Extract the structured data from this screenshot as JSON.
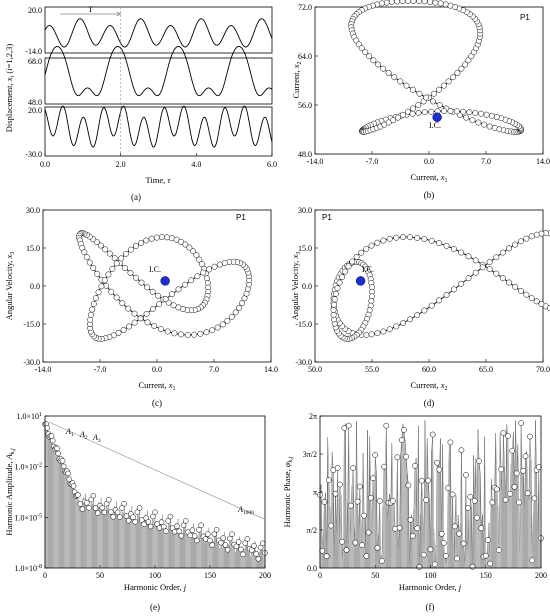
{
  "chart_data": [
    {
      "id": "a",
      "type": "line",
      "caption": "(a)",
      "xlabel": "Time, τ",
      "ylabel": "Displacement, x_i (i=1,2,3)",
      "xlim": [
        0.0,
        6.0
      ],
      "xticks": [
        "0.0",
        "2.0",
        "4.0",
        "6.0"
      ],
      "period_label": "T",
      "panels": [
        {
          "ylim": [
            -14.0,
            20.0
          ],
          "ticks": [
            "20.0",
            "-14.0"
          ]
        },
        {
          "ylim": [
            48.0,
            68.0
          ],
          "ticks": [
            "68.0",
            "48.0"
          ]
        },
        {
          "ylim": [
            -30.0,
            20.0
          ],
          "ticks": [
            "20.0",
            "-30.0"
          ]
        }
      ]
    },
    {
      "id": "b",
      "type": "scatter",
      "caption": "(b)",
      "tag": "P1",
      "xlabel": "Current, x_1",
      "ylabel": "Current, x_2",
      "xlim": [
        -14.0,
        14.0
      ],
      "ylim": [
        48.0,
        72.0
      ],
      "xticks": [
        "-14.0",
        "-7.0",
        "0.0",
        "7.0",
        "14.0"
      ],
      "yticks": [
        "48.0",
        "56.0",
        "64.0",
        "72.0"
      ],
      "ic_label": "I.C.",
      "ic": [
        1.0,
        54.0
      ]
    },
    {
      "id": "c",
      "type": "scatter",
      "caption": "(c)",
      "tag": "P1",
      "xlabel": "Current, x_1",
      "ylabel": "Angular Velocity, x_3",
      "xlim": [
        -14.0,
        14.0
      ],
      "ylim": [
        -30.0,
        30.0
      ],
      "xticks": [
        "-14.0",
        "-7.0",
        "0.0",
        "7.0",
        "14.0"
      ],
      "yticks": [
        "-30.0",
        "-15.0",
        "0.0",
        "15.0",
        "30.0"
      ],
      "ic_label": "I.C.",
      "ic": [
        1.0,
        2.0
      ]
    },
    {
      "id": "d",
      "type": "scatter",
      "caption": "(d)",
      "tag": "P1",
      "xlabel": "Current, x_2",
      "ylabel": "Angular Velocity, x_3",
      "xlim": [
        50.0,
        70.0
      ],
      "ylim": [
        -30.0,
        30.0
      ],
      "xticks": [
        "50.0",
        "55.0",
        "60.0",
        "65.0",
        "70.0"
      ],
      "yticks": [
        "-30.0",
        "-15.0",
        "0.0",
        "15.0",
        "30.0"
      ],
      "ic_label": "I.C.",
      "ic": [
        54.0,
        2.0
      ]
    },
    {
      "id": "e",
      "type": "bar",
      "caption": "(e)",
      "xlabel": "Harmonic Order, j",
      "ylabel": "Harmonic Amplitude, A_{k,j}",
      "xlim": [
        0,
        200
      ],
      "yscale": "log",
      "xticks": [
        "0",
        "50",
        "100",
        "150",
        "200"
      ],
      "yticks": [
        "1.0×10^-8",
        "1.0×10^-5",
        "1.0×10^-2",
        "1.0×10^1"
      ],
      "annotations": [
        "A_1",
        "A_2",
        "A_3",
        "A_1000"
      ]
    },
    {
      "id": "f",
      "type": "bar",
      "caption": "(f)",
      "xlabel": "Harmonic Order, j",
      "ylabel": "Harmonic Phase, φ_{k,j}",
      "xlim": [
        0,
        200
      ],
      "xticks": [
        "0",
        "50",
        "100",
        "150",
        "200"
      ],
      "yticks": [
        "0.0",
        "π/2",
        "π",
        "3π/2",
        "2π"
      ]
    }
  ]
}
